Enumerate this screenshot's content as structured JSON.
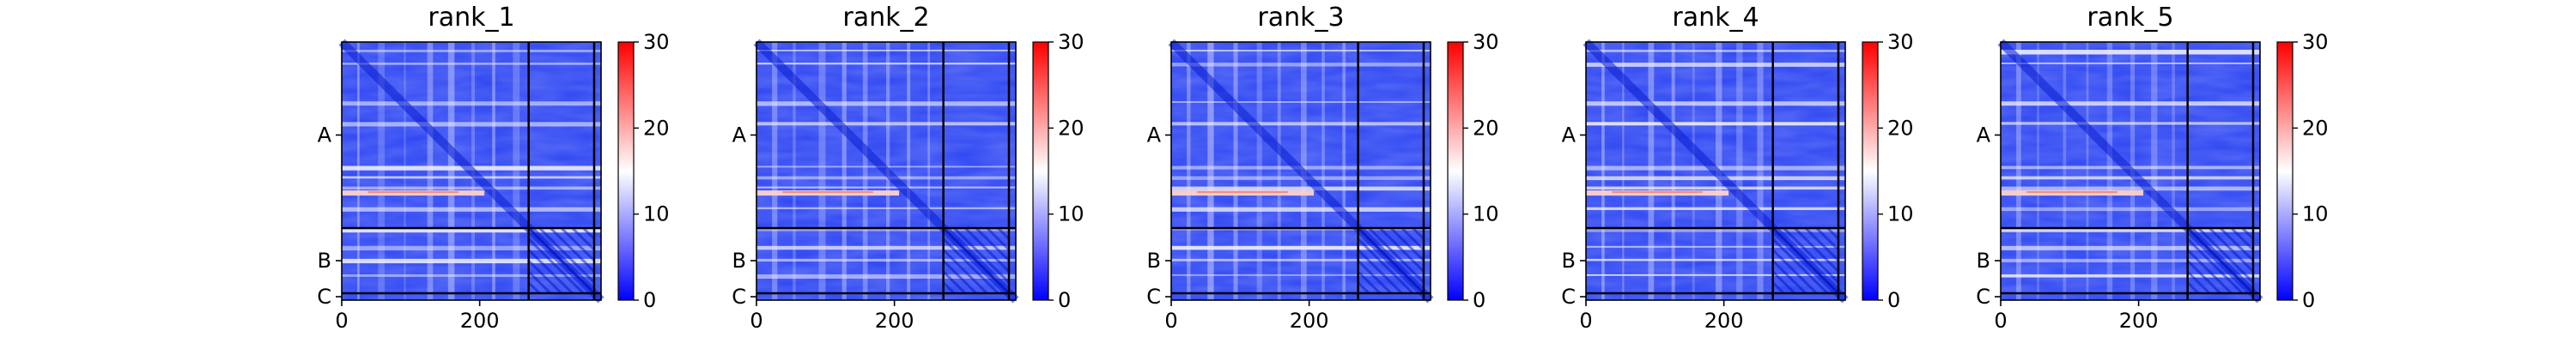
{
  "chart_data": [
    {
      "type": "heatmap",
      "title": "rank_1",
      "x_ticks": [
        {
          "value": 0,
          "label": "0"
        },
        {
          "value": 200,
          "label": "200"
        }
      ],
      "chains": [
        {
          "label": "A",
          "start": 0,
          "end": 271
        },
        {
          "label": "B",
          "start": 271,
          "end": 366
        },
        {
          "label": "C",
          "start": 366,
          "end": 376
        }
      ],
      "matrix_size": 376,
      "colorbar": {
        "min": 0,
        "max": 30,
        "ticks": [
          {
            "value": 0,
            "label": "0"
          },
          {
            "value": 10,
            "label": "10"
          },
          {
            "value": 20,
            "label": "20"
          },
          {
            "value": 30,
            "label": "30"
          }
        ],
        "colors": [
          "#0000ff",
          "#ffffff",
          "#ff0000"
        ]
      }
    },
    {
      "type": "heatmap",
      "title": "rank_2",
      "x_ticks": [
        {
          "value": 0,
          "label": "0"
        },
        {
          "value": 200,
          "label": "200"
        }
      ],
      "chains": [
        {
          "label": "A",
          "start": 0,
          "end": 271
        },
        {
          "label": "B",
          "start": 271,
          "end": 366
        },
        {
          "label": "C",
          "start": 366,
          "end": 376
        }
      ],
      "matrix_size": 376,
      "colorbar": {
        "min": 0,
        "max": 30,
        "ticks": [
          {
            "value": 0,
            "label": "0"
          },
          {
            "value": 10,
            "label": "10"
          },
          {
            "value": 20,
            "label": "20"
          },
          {
            "value": 30,
            "label": "30"
          }
        ],
        "colors": [
          "#0000ff",
          "#ffffff",
          "#ff0000"
        ]
      }
    },
    {
      "type": "heatmap",
      "title": "rank_3",
      "x_ticks": [
        {
          "value": 0,
          "label": "0"
        },
        {
          "value": 200,
          "label": "200"
        }
      ],
      "chains": [
        {
          "label": "A",
          "start": 0,
          "end": 271
        },
        {
          "label": "B",
          "start": 271,
          "end": 366
        },
        {
          "label": "C",
          "start": 366,
          "end": 376
        }
      ],
      "matrix_size": 376,
      "colorbar": {
        "min": 0,
        "max": 30,
        "ticks": [
          {
            "value": 0,
            "label": "0"
          },
          {
            "value": 10,
            "label": "10"
          },
          {
            "value": 20,
            "label": "20"
          },
          {
            "value": 30,
            "label": "30"
          }
        ],
        "colors": [
          "#0000ff",
          "#ffffff",
          "#ff0000"
        ]
      }
    },
    {
      "type": "heatmap",
      "title": "rank_4",
      "x_ticks": [
        {
          "value": 0,
          "label": "0"
        },
        {
          "value": 200,
          "label": "200"
        }
      ],
      "chains": [
        {
          "label": "A",
          "start": 0,
          "end": 271
        },
        {
          "label": "B",
          "start": 271,
          "end": 366
        },
        {
          "label": "C",
          "start": 366,
          "end": 376
        }
      ],
      "matrix_size": 376,
      "colorbar": {
        "min": 0,
        "max": 30,
        "ticks": [
          {
            "value": 0,
            "label": "0"
          },
          {
            "value": 10,
            "label": "10"
          },
          {
            "value": 20,
            "label": "20"
          },
          {
            "value": 30,
            "label": "30"
          }
        ],
        "colors": [
          "#0000ff",
          "#ffffff",
          "#ff0000"
        ]
      }
    },
    {
      "type": "heatmap",
      "title": "rank_5",
      "x_ticks": [
        {
          "value": 0,
          "label": "0"
        },
        {
          "value": 200,
          "label": "200"
        }
      ],
      "chains": [
        {
          "label": "A",
          "start": 0,
          "end": 271
        },
        {
          "label": "B",
          "start": 271,
          "end": 366
        },
        {
          "label": "C",
          "start": 366,
          "end": 376
        }
      ],
      "matrix_size": 376,
      "colorbar": {
        "min": 0,
        "max": 30,
        "ticks": [
          {
            "value": 0,
            "label": "0"
          },
          {
            "value": 10,
            "label": "10"
          },
          {
            "value": 20,
            "label": "20"
          },
          {
            "value": 30,
            "label": "30"
          }
        ],
        "colors": [
          "#0000ff",
          "#ffffff",
          "#ff0000"
        ]
      }
    }
  ]
}
